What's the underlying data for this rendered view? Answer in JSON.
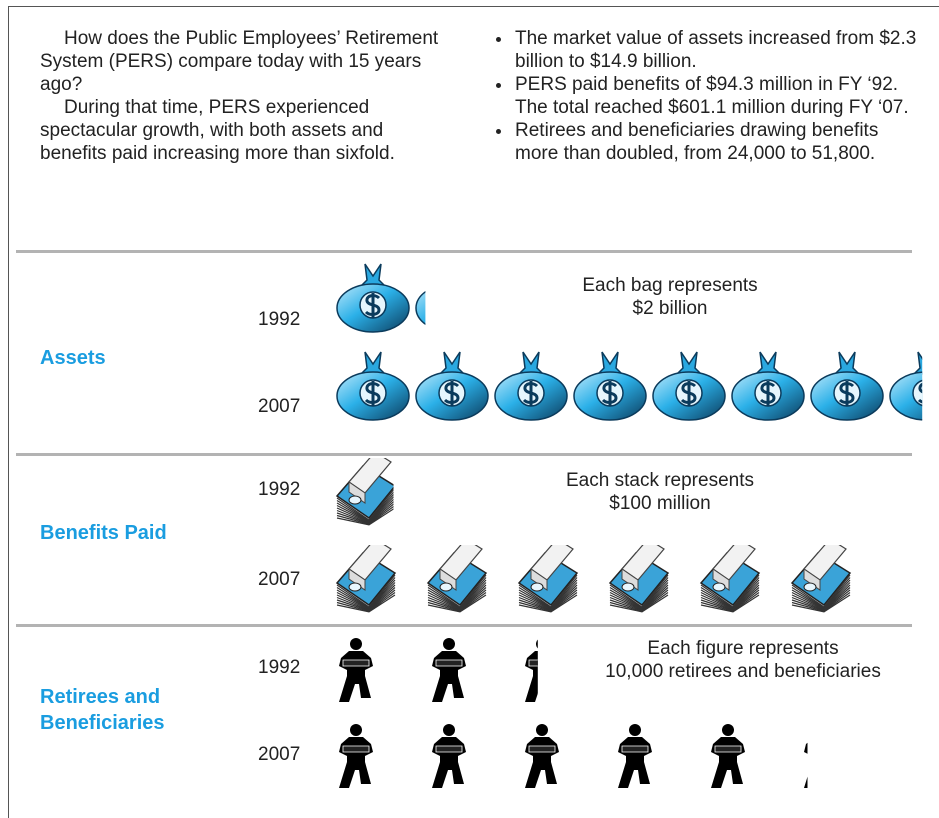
{
  "intro": {
    "paragraphs": [
      "How does the Public Employees’ Retirement System (PERS) compare today with 15 years ago?",
      "During that time, PERS experienced spectacular growth, with both assets and benefits paid increasing more than sixfold."
    ],
    "bullets": [
      "The market value of assets increased from $2.3 billion to $14.9 billion.",
      "PERS paid benefits of $94.3 million in FY ‘92. The total reached $601.1 million during FY ‘07.",
      "Retirees and beneficiaries drawing benefits more than doubled, from 24,000 to 51,800."
    ]
  },
  "chart_data": [
    {
      "type": "pictograph",
      "title": "Assets",
      "categories": [
        "1992",
        "2007"
      ],
      "values": [
        2.3,
        14.9
      ],
      "unit_text": "Each bag represents",
      "unit": {
        "value": 2,
        "label": "$2 billion"
      },
      "icon": "bag"
    },
    {
      "type": "pictograph",
      "title": "Benefits Paid",
      "categories": [
        "1992",
        "2007"
      ],
      "values": [
        94.3,
        601.1
      ],
      "unit_text": "Each stack represents",
      "unit": {
        "value": 100,
        "label": "$100 million"
      },
      "icon": "stack"
    },
    {
      "type": "pictograph",
      "title": "Retirees and Beneficiaries",
      "categories": [
        "1992",
        "2007"
      ],
      "values": [
        24000,
        51800
      ],
      "unit_text": "Each figure represents",
      "unit": {
        "value": 10000,
        "label": "10,000 retirees and beneficiaries"
      },
      "icon": "figure"
    }
  ]
}
